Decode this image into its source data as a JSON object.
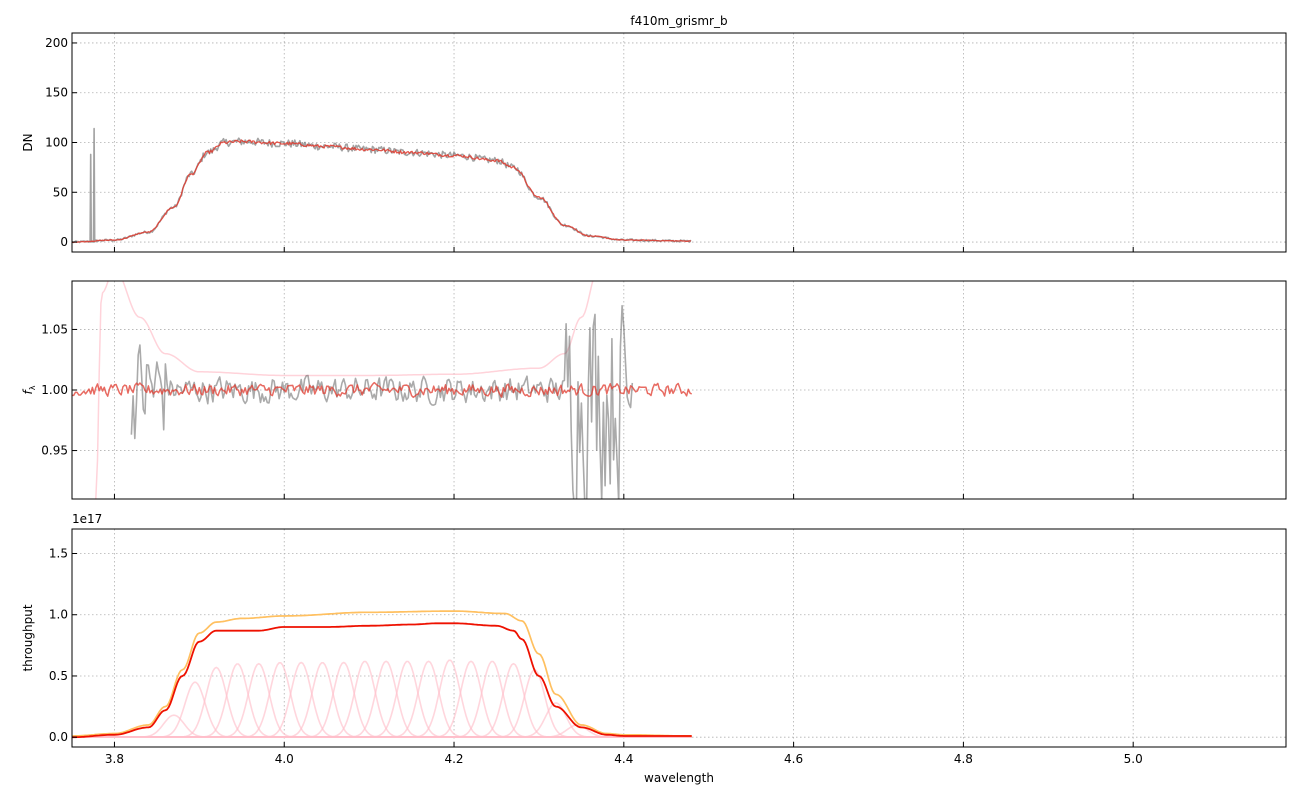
{
  "title": "f410m_grismr_b",
  "colors": {
    "data": "#555555",
    "model": "#e03a2e",
    "model_light": "#ff9999",
    "envelope": "#ffc060",
    "total": "#ee1100",
    "components": "#ffc0cb",
    "grid": "#b0b0b0"
  },
  "chart_data": [
    {
      "id": "counts",
      "type": "line",
      "ylabel": "DN",
      "xlim": [
        3.75,
        5.18
      ],
      "ylim": [
        -10,
        210
      ],
      "yticks": [
        0,
        50,
        100,
        150,
        200
      ],
      "xticks": [
        3.8,
        4.0,
        4.2,
        4.4,
        4.6,
        4.8,
        5.0
      ],
      "show_xticklabels": false,
      "grid": true,
      "series": [
        {
          "role": "data",
          "shape": "band",
          "x": [
            3.75,
            3.8,
            3.84,
            3.87,
            3.89,
            3.91,
            3.93,
            3.95,
            4.0,
            4.05,
            4.1,
            4.15,
            4.2,
            4.25,
            4.27,
            4.3,
            4.33,
            4.36,
            4.4,
            4.48
          ],
          "y": [
            0,
            2,
            10,
            35,
            68,
            90,
            100,
            101,
            99,
            96,
            93,
            90,
            87,
            82,
            75,
            45,
            17,
            6,
            2,
            1
          ],
          "spikes": [
            {
              "x": 3.772,
              "y": 88
            },
            {
              "x": 3.776,
              "y": 114
            }
          ]
        },
        {
          "role": "model",
          "shape": "band",
          "x": [
            3.75,
            3.8,
            3.84,
            3.87,
            3.89,
            3.91,
            3.93,
            3.95,
            4.0,
            4.05,
            4.1,
            4.15,
            4.2,
            4.25,
            4.27,
            4.3,
            4.33,
            4.36,
            4.4,
            4.48
          ],
          "y": [
            0,
            2,
            10,
            35,
            68,
            90,
            100,
            101,
            99,
            96,
            93,
            90,
            87,
            82,
            75,
            45,
            17,
            6,
            2,
            1
          ]
        }
      ]
    },
    {
      "id": "ratio",
      "type": "line",
      "ylabel": "f",
      "ylabel_sub": "λ",
      "xlim": [
        3.75,
        5.18
      ],
      "ylim": [
        0.91,
        1.09
      ],
      "yticks": [
        0.95,
        1.0,
        1.05
      ],
      "ytick_labels": [
        "0.95",
        "1.00",
        "1.05"
      ],
      "xticks": [
        3.8,
        4.0,
        4.2,
        4.4,
        4.6,
        4.8,
        5.0
      ],
      "show_xticklabels": false,
      "grid": true,
      "series": [
        {
          "role": "uncertainty",
          "shape": "envelope",
          "x": [
            3.778,
            3.785,
            3.8,
            3.83,
            3.86,
            3.9,
            4.0,
            4.1,
            4.2,
            4.3,
            4.33,
            4.35,
            4.37
          ],
          "y": [
            0.91,
            1.08,
            1.1,
            1.06,
            1.03,
            1.015,
            1.012,
            1.012,
            1.013,
            1.018,
            1.03,
            1.06,
            1.1
          ]
        },
        {
          "role": "data",
          "shape": "noise",
          "x_range": [
            3.82,
            4.41
          ],
          "center": 1.0,
          "amplitude": 0.015,
          "edges": [
            [
              3.82,
              3.86,
              0.06
            ],
            [
              4.33,
              4.41,
              0.12
            ]
          ]
        },
        {
          "role": "model",
          "shape": "noise",
          "x_range": [
            3.75,
            4.48
          ],
          "center": 1.0,
          "amplitude": 0.007
        }
      ]
    },
    {
      "id": "throughput",
      "type": "line",
      "ylabel": "throughput",
      "xlabel": "wavelength",
      "scale_label": "1e17",
      "xlim": [
        3.75,
        5.18
      ],
      "ylim": [
        -0.08,
        1.7
      ],
      "yticks": [
        0.0,
        0.5,
        1.0,
        1.5
      ],
      "ytick_labels": [
        "0.0",
        "0.5",
        "1.0",
        "1.5"
      ],
      "xticks": [
        3.8,
        4.0,
        4.2,
        4.4,
        4.6,
        4.8,
        5.0
      ],
      "xtick_labels": [
        "3.8",
        "4.0",
        "4.2",
        "4.4",
        "4.6",
        "4.8",
        "5.0"
      ],
      "grid": true,
      "series": [
        {
          "role": "envelope",
          "x": [
            3.75,
            3.8,
            3.84,
            3.86,
            3.88,
            3.9,
            3.92,
            3.95,
            4.0,
            4.1,
            4.2,
            4.26,
            4.28,
            4.3,
            4.32,
            4.35,
            4.38,
            4.4,
            4.48
          ],
          "y": [
            0.01,
            0.03,
            0.1,
            0.25,
            0.55,
            0.85,
            0.94,
            0.97,
            0.99,
            1.02,
            1.03,
            1.01,
            0.95,
            0.68,
            0.35,
            0.1,
            0.03,
            0.02,
            0.01
          ]
        },
        {
          "role": "total",
          "x": [
            3.75,
            3.8,
            3.84,
            3.86,
            3.88,
            3.9,
            3.92,
            3.95,
            3.97,
            4.0,
            4.05,
            4.1,
            4.15,
            4.18,
            4.2,
            4.25,
            4.27,
            4.28,
            4.3,
            4.32,
            4.35,
            4.38,
            4.4,
            4.48
          ],
          "y": [
            0.0,
            0.02,
            0.08,
            0.22,
            0.5,
            0.78,
            0.87,
            0.87,
            0.87,
            0.9,
            0.9,
            0.91,
            0.92,
            0.93,
            0.93,
            0.91,
            0.87,
            0.8,
            0.5,
            0.25,
            0.08,
            0.02,
            0.01,
            0.01
          ]
        },
        {
          "role": "components",
          "centers": [
            3.87,
            3.895,
            3.92,
            3.945,
            3.97,
            3.995,
            4.02,
            4.045,
            4.07,
            4.095,
            4.12,
            4.145,
            4.17,
            4.195,
            4.22,
            4.245,
            4.27,
            4.295,
            4.32,
            4.345
          ],
          "heights": [
            0.18,
            0.45,
            0.57,
            0.6,
            0.6,
            0.61,
            0.61,
            0.61,
            0.61,
            0.62,
            0.62,
            0.62,
            0.62,
            0.63,
            0.62,
            0.62,
            0.6,
            0.55,
            0.28,
            0.1
          ],
          "sigma": 0.012
        }
      ]
    }
  ]
}
